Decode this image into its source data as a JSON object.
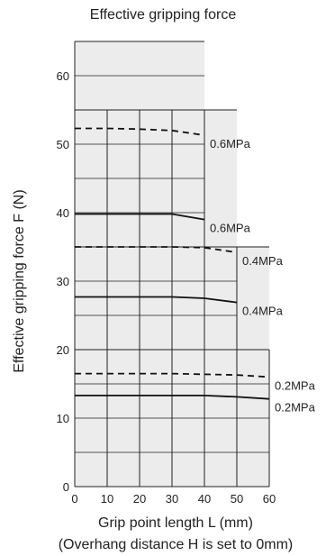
{
  "chart_data": {
    "type": "line",
    "title": "Effective gripping force",
    "xlabel": "Grip point length L (mm)",
    "xlabel_note": "(Overhang distance H is set to 0mm)",
    "ylabel": "Effective gripping force  F (N)",
    "xlim": [
      0,
      60
    ],
    "ylim": [
      0,
      65
    ],
    "x_ticks": [
      "0",
      "10",
      "20",
      "30",
      "40",
      "50",
      "60"
    ],
    "y_ticks": [
      "0",
      "10",
      "20",
      "30",
      "40",
      "50",
      "60"
    ],
    "grid": true,
    "series": [
      {
        "name": "0.6MPa",
        "style": "dashed",
        "x": [
          0,
          10,
          20,
          30,
          40
        ],
        "y": [
          52.3,
          52.3,
          52.2,
          52.0,
          51.3
        ]
      },
      {
        "name": "0.6MPa",
        "style": "solid",
        "x": [
          0,
          10,
          20,
          30,
          40
        ],
        "y": [
          39.8,
          39.8,
          39.8,
          39.8,
          39.0
        ]
      },
      {
        "name": "0.4MPa",
        "style": "dashed",
        "x": [
          0,
          10,
          20,
          30,
          40,
          50
        ],
        "y": [
          35.0,
          35.0,
          35.0,
          35.0,
          34.9,
          34.2
        ]
      },
      {
        "name": "0.4MPa",
        "style": "solid",
        "x": [
          0,
          10,
          20,
          30,
          40,
          50
        ],
        "y": [
          27.7,
          27.7,
          27.7,
          27.7,
          27.5,
          26.9
        ]
      },
      {
        "name": "0.2MPa",
        "style": "dashed",
        "x": [
          0,
          10,
          20,
          30,
          40,
          50,
          60
        ],
        "y": [
          16.5,
          16.5,
          16.5,
          16.5,
          16.4,
          16.3,
          16.0
        ]
      },
      {
        "name": "0.2MPa",
        "style": "solid",
        "x": [
          0,
          10,
          20,
          30,
          40,
          50,
          60
        ],
        "y": [
          13.3,
          13.3,
          13.3,
          13.3,
          13.3,
          13.1,
          12.8
        ]
      }
    ],
    "region_limits": [
      {
        "x_max": 40,
        "y_max": 55
      },
      {
        "x_max": 50,
        "y_max": 35
      },
      {
        "x_max": 60,
        "y_max": 20
      }
    ],
    "line_color": "#111111",
    "grid_color": "#222222",
    "fill_color": "#ececec"
  }
}
